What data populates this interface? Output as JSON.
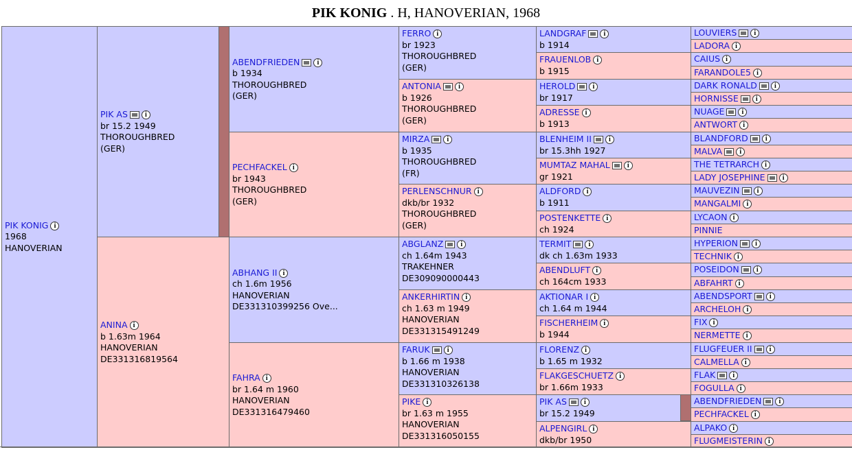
{
  "page": {
    "title_name": "PIK KONIG",
    "title_rest": " . H, HANOVERIAN, 1968"
  },
  "horses": [
    {
      "name": "PIK KONIG",
      "lines": [
        "1968",
        "HANOVERIAN"
      ],
      "photo": false,
      "sex": "m"
    },
    {
      "name": "PIK AS",
      "lines": [
        "br 15.2 1949",
        "THOROUGHBRED",
        "(GER)"
      ],
      "photo": true,
      "sex": "m"
    },
    {
      "name": "ANINA",
      "lines": [
        "b 1.63m 1964",
        "HANOVERIAN",
        "DE331316819564"
      ],
      "photo": false,
      "sex": "f"
    },
    {
      "name": "ABENDFRIEDEN",
      "lines": [
        "b 1934",
        "THOROUGHBRED",
        "(GER)"
      ],
      "photo": true,
      "sex": "m"
    },
    {
      "name": "PECHFACKEL",
      "lines": [
        "br 1943",
        "THOROUGHBRED",
        "(GER)"
      ],
      "photo": false,
      "sex": "f"
    },
    {
      "name": "ABHANG II",
      "lines": [
        "ch 1.6m 1956",
        "HANOVERIAN",
        "DE331310399256 Ove..."
      ],
      "photo": false,
      "sex": "m"
    },
    {
      "name": "FAHRA",
      "lines": [
        "br 1.64 m 1960",
        "HANOVERIAN",
        "DE331316479460"
      ],
      "photo": false,
      "sex": "f"
    },
    {
      "name": "FERRO",
      "lines": [
        "br 1923",
        "THOROUGHBRED",
        "(GER)"
      ],
      "photo": false,
      "sex": "m"
    },
    {
      "name": "ANTONIA",
      "lines": [
        "b 1926",
        "THOROUGHBRED",
        "(GER)"
      ],
      "photo": true,
      "sex": "f"
    },
    {
      "name": "MIRZA",
      "lines": [
        "b 1935",
        "THOROUGHBRED",
        "(FR)"
      ],
      "photo": true,
      "sex": "m"
    },
    {
      "name": "PERLENSCHNUR",
      "lines": [
        "dkb/br 1932",
        "THOROUGHBRED",
        "(GER)"
      ],
      "photo": false,
      "sex": "f"
    },
    {
      "name": "ABGLANZ",
      "lines": [
        "ch 1.64m 1943",
        "TRAKEHNER",
        "DE309090000443"
      ],
      "photo": true,
      "sex": "m"
    },
    {
      "name": "ANKERHIRTIN",
      "lines": [
        "ch 1.63 m 1949",
        "HANOVERIAN",
        "DE331315491249"
      ],
      "photo": false,
      "sex": "f"
    },
    {
      "name": "FARUK",
      "lines": [
        "b 1.66 m 1938",
        "HANOVERIAN",
        "DE331310326138"
      ],
      "photo": true,
      "sex": "m"
    },
    {
      "name": "PIKE",
      "lines": [
        "br 1.63 m 1955",
        "HANOVERIAN",
        "DE331316050155"
      ],
      "photo": false,
      "sex": "f"
    },
    {
      "name": "LANDGRAF",
      "lines": [
        "b 1914"
      ],
      "photo": true,
      "sex": "m"
    },
    {
      "name": "FRAUENLOB",
      "lines": [
        "b 1915"
      ],
      "photo": false,
      "sex": "f"
    },
    {
      "name": "HEROLD",
      "lines": [
        "br 1917"
      ],
      "photo": true,
      "sex": "m"
    },
    {
      "name": "ADRESSE",
      "lines": [
        "b 1913"
      ],
      "photo": false,
      "sex": "f"
    },
    {
      "name": "BLENHEIM II",
      "lines": [
        "br 15.3hh 1927"
      ],
      "photo": true,
      "sex": "m"
    },
    {
      "name": "MUMTAZ MAHAL",
      "lines": [
        "gr 1921"
      ],
      "photo": true,
      "sex": "f"
    },
    {
      "name": "ALDFORD",
      "lines": [
        "b 1911"
      ],
      "photo": false,
      "sex": "m"
    },
    {
      "name": "POSTENKETTE",
      "lines": [
        "ch 1924"
      ],
      "photo": false,
      "sex": "f"
    },
    {
      "name": "TERMIT",
      "lines": [
        "dk ch 1.63m 1933"
      ],
      "photo": true,
      "sex": "m"
    },
    {
      "name": "ABENDLUFT",
      "lines": [
        "ch 164cm 1933"
      ],
      "photo": false,
      "sex": "f"
    },
    {
      "name": "AKTIONAR I",
      "lines": [
        "ch 1.64 m 1944"
      ],
      "photo": false,
      "sex": "m"
    },
    {
      "name": "FISCHERHEIM",
      "lines": [
        "b 1944"
      ],
      "photo": false,
      "sex": "f"
    },
    {
      "name": "FLORENZ",
      "lines": [
        "b 1.65 m 1932"
      ],
      "photo": false,
      "sex": "m"
    },
    {
      "name": "FLAKGESCHUETZ",
      "lines": [
        "br 1.66m 1933"
      ],
      "photo": false,
      "sex": "f"
    },
    {
      "name": "PIK AS",
      "lines": [
        "br 15.2 1949"
      ],
      "photo": true,
      "sex": "m"
    },
    {
      "name": "ALPENGIRL",
      "lines": [
        "dkb/br 1950"
      ],
      "photo": false,
      "sex": "f"
    },
    {
      "name": "LOUVIERS",
      "lines": [],
      "photo": true,
      "sex": "m"
    },
    {
      "name": "LADORA",
      "lines": [],
      "photo": false,
      "sex": "f"
    },
    {
      "name": "CAIUS",
      "lines": [],
      "photo": false,
      "sex": "m"
    },
    {
      "name": "FARANDOLE5",
      "lines": [],
      "photo": false,
      "sex": "f"
    },
    {
      "name": "DARK RONALD",
      "lines": [],
      "photo": true,
      "sex": "m"
    },
    {
      "name": "HORNISSE",
      "lines": [],
      "photo": true,
      "sex": "f"
    },
    {
      "name": "NUAGE",
      "lines": [],
      "photo": true,
      "sex": "m"
    },
    {
      "name": "ANTWORT",
      "lines": [],
      "photo": false,
      "sex": "f"
    },
    {
      "name": "BLANDFORD",
      "lines": [],
      "photo": true,
      "sex": "m"
    },
    {
      "name": "MALVA",
      "lines": [],
      "photo": true,
      "sex": "f"
    },
    {
      "name": "THE TETRARCH",
      "lines": [],
      "photo": false,
      "sex": "m"
    },
    {
      "name": "LADY JOSEPHINE",
      "lines": [],
      "photo": true,
      "sex": "f"
    },
    {
      "name": "MAUVEZIN",
      "lines": [],
      "photo": true,
      "sex": "m"
    },
    {
      "name": "MANGALMI",
      "lines": [],
      "photo": false,
      "sex": "f"
    },
    {
      "name": "LYCAON",
      "lines": [],
      "photo": false,
      "sex": "m"
    },
    {
      "name": "PINNIE",
      "lines": [],
      "photo": false,
      "sex": "f",
      "noinfo": true
    },
    {
      "name": "HYPERION",
      "lines": [],
      "photo": true,
      "sex": "m"
    },
    {
      "name": "TECHNIK",
      "lines": [],
      "photo": false,
      "sex": "f"
    },
    {
      "name": "POSEIDON",
      "lines": [],
      "photo": true,
      "sex": "m"
    },
    {
      "name": "ABFAHRT",
      "lines": [],
      "photo": false,
      "sex": "f"
    },
    {
      "name": "ABENDSPORT",
      "lines": [],
      "photo": true,
      "sex": "m"
    },
    {
      "name": "ARCHELOH",
      "lines": [],
      "photo": false,
      "sex": "f"
    },
    {
      "name": "FIX",
      "lines": [],
      "photo": false,
      "sex": "m"
    },
    {
      "name": "NERMETTE",
      "lines": [],
      "photo": false,
      "sex": "f"
    },
    {
      "name": "FLUGFEUER II",
      "lines": [],
      "photo": true,
      "sex": "m"
    },
    {
      "name": "CALMELLA",
      "lines": [],
      "photo": false,
      "sex": "f"
    },
    {
      "name": "FLAK",
      "lines": [],
      "photo": true,
      "sex": "m"
    },
    {
      "name": "FOGULLA",
      "lines": [],
      "photo": false,
      "sex": "f"
    },
    {
      "name": "ABENDFRIEDEN",
      "lines": [],
      "photo": true,
      "sex": "m"
    },
    {
      "name": "PECHFACKEL",
      "lines": [],
      "photo": false,
      "sex": "f"
    },
    {
      "name": "ALPAKO",
      "lines": [],
      "photo": false,
      "sex": "m"
    },
    {
      "name": "FLUGMEISTERIN",
      "lines": [],
      "photo": false,
      "sex": "f"
    }
  ]
}
